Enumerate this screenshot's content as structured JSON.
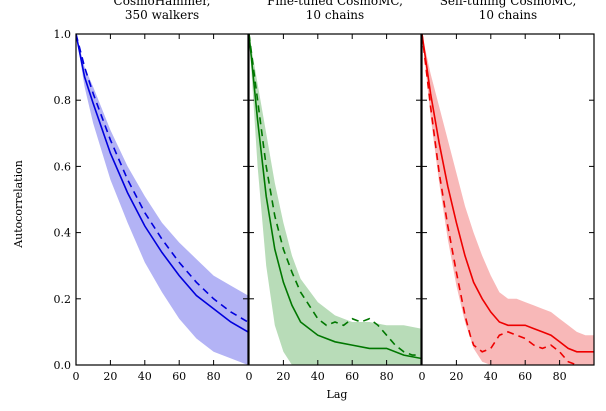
{
  "chart_data": {
    "type": "line",
    "ylabel": "Autocorrelation",
    "xlabel": "Lag",
    "ylim": [
      0,
      1
    ],
    "yticks": [
      "0.0",
      "0.2",
      "0.4",
      "0.6",
      "0.8",
      "1.0"
    ],
    "grid": false,
    "panels": [
      {
        "title_lines": [
          "CosmoHammer,",
          "350 walkers"
        ],
        "color": "#0000dd",
        "band_color": "#b3b3f5",
        "xlim": [
          0,
          100
        ],
        "xticks": [
          "0",
          "20",
          "40",
          "60",
          "80"
        ],
        "series": [
          {
            "style": "solid",
            "x": [
              0,
              5,
              10,
              20,
              30,
              40,
              50,
              60,
              70,
              80,
              90,
              100
            ],
            "y": [
              1.0,
              0.87,
              0.79,
              0.64,
              0.52,
              0.42,
              0.34,
              0.27,
              0.21,
              0.17,
              0.13,
              0.1
            ]
          },
          {
            "style": "dashed",
            "x": [
              0,
              5,
              10,
              20,
              30,
              40,
              50,
              60,
              70,
              80,
              90,
              100
            ],
            "y": [
              1.0,
              0.9,
              0.82,
              0.68,
              0.56,
              0.46,
              0.38,
              0.31,
              0.25,
              0.2,
              0.16,
              0.13
            ]
          }
        ],
        "band": {
          "x": [
            0,
            5,
            10,
            20,
            30,
            40,
            50,
            60,
            70,
            80,
            90,
            100
          ],
          "low": [
            1.0,
            0.84,
            0.73,
            0.56,
            0.43,
            0.31,
            0.22,
            0.14,
            0.08,
            0.04,
            0.02,
            0.0
          ],
          "high": [
            1.0,
            0.9,
            0.84,
            0.71,
            0.6,
            0.51,
            0.43,
            0.37,
            0.32,
            0.27,
            0.24,
            0.21
          ]
        }
      },
      {
        "title_lines": [
          "Fine-tuned CosmoMC,",
          "10 chains"
        ],
        "color": "#007700",
        "band_color": "#b8dcb8",
        "xlim": [
          0,
          100
        ],
        "xticks": [
          "0",
          "20",
          "40",
          "60",
          "80"
        ],
        "series": [
          {
            "style": "solid",
            "x": [
              0,
              5,
              10,
              15,
              20,
              25,
              30,
              40,
              50,
              60,
              70,
              80,
              90,
              100
            ],
            "y": [
              1.0,
              0.74,
              0.51,
              0.35,
              0.25,
              0.18,
              0.13,
              0.09,
              0.07,
              0.06,
              0.05,
              0.05,
              0.03,
              0.02
            ]
          },
          {
            "style": "dashed",
            "x": [
              0,
              5,
              10,
              15,
              20,
              25,
              30,
              35,
              40,
              45,
              50,
              55,
              60,
              65,
              70,
              75,
              80,
              85,
              90,
              95,
              100
            ],
            "y": [
              1.0,
              0.8,
              0.6,
              0.45,
              0.35,
              0.28,
              0.22,
              0.18,
              0.14,
              0.12,
              0.13,
              0.12,
              0.14,
              0.13,
              0.14,
              0.12,
              0.09,
              0.06,
              0.04,
              0.03,
              0.03
            ]
          }
        ],
        "band": {
          "x": [
            0,
            5,
            10,
            15,
            20,
            25,
            30,
            40,
            50,
            60,
            70,
            80,
            90,
            100
          ],
          "low": [
            1.0,
            0.6,
            0.3,
            0.12,
            0.04,
            0.0,
            0.0,
            0.0,
            0.0,
            0.0,
            0.0,
            0.0,
            0.0,
            0.0
          ],
          "high": [
            1.0,
            0.85,
            0.7,
            0.55,
            0.43,
            0.33,
            0.26,
            0.19,
            0.15,
            0.13,
            0.13,
            0.12,
            0.12,
            0.11
          ]
        }
      },
      {
        "title_lines": [
          "Self-tuning CosmoMC,",
          "10 chains"
        ],
        "color": "#ee0000",
        "band_color": "#f8b8b8",
        "xlim": [
          0,
          100
        ],
        "xticks": [
          "0",
          "20",
          "40",
          "60",
          "80"
        ],
        "series": [
          {
            "style": "solid",
            "x": [
              0,
              5,
              10,
              15,
              20,
              25,
              30,
              35,
              40,
              45,
              50,
              55,
              60,
              65,
              70,
              75,
              80,
              85,
              90,
              95,
              100
            ],
            "y": [
              1.0,
              0.82,
              0.67,
              0.54,
              0.43,
              0.33,
              0.25,
              0.2,
              0.16,
              0.13,
              0.12,
              0.12,
              0.12,
              0.11,
              0.1,
              0.09,
              0.07,
              0.05,
              0.04,
              0.04,
              0.04
            ]
          },
          {
            "style": "dashed",
            "x": [
              0,
              5,
              10,
              15,
              20,
              25,
              28,
              30,
              35,
              40,
              45,
              50,
              55,
              60,
              65,
              70,
              75,
              80,
              85,
              90
            ],
            "y": [
              1.0,
              0.78,
              0.58,
              0.42,
              0.28,
              0.15,
              0.09,
              0.06,
              0.04,
              0.05,
              0.09,
              0.1,
              0.09,
              0.08,
              0.06,
              0.05,
              0.06,
              0.04,
              0.01,
              0.0
            ]
          }
        ],
        "band": {
          "x": [
            0,
            5,
            10,
            15,
            20,
            25,
            30,
            35,
            40,
            45,
            50,
            55,
            60,
            65,
            70,
            75,
            80,
            85,
            90,
            95,
            100
          ],
          "low": [
            1.0,
            0.75,
            0.55,
            0.38,
            0.24,
            0.13,
            0.05,
            0.01,
            0.0,
            0.0,
            0.0,
            0.0,
            0.0,
            0.0,
            0.0,
            0.0,
            0.0,
            0.0,
            0.0,
            0.0,
            0.0
          ],
          "high": [
            1.0,
            0.88,
            0.78,
            0.68,
            0.58,
            0.48,
            0.4,
            0.33,
            0.27,
            0.22,
            0.2,
            0.2,
            0.19,
            0.18,
            0.17,
            0.16,
            0.14,
            0.12,
            0.1,
            0.09,
            0.09
          ]
        }
      }
    ]
  }
}
